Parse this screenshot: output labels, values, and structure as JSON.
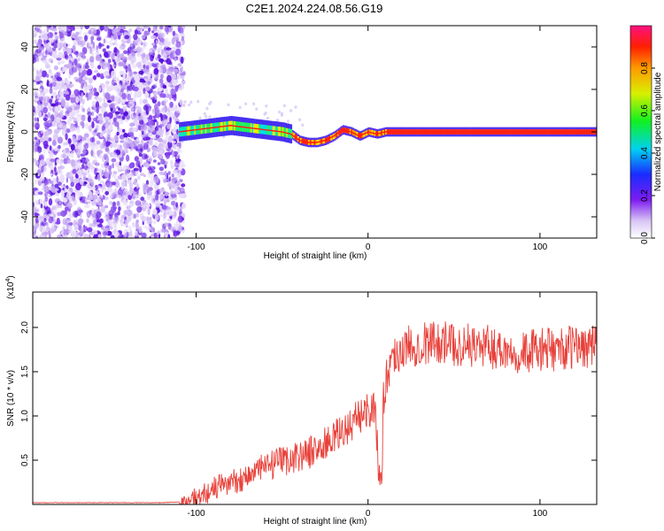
{
  "title": "C2E1.2024.224.08.56.G19",
  "chart_data": [
    {
      "type": "heatmap",
      "xlabel": "Height of straight line (km)",
      "ylabel": "Frequency (Hz)",
      "xlim": [
        -195,
        133
      ],
      "ylim": [
        -50,
        50
      ],
      "x_ticks": [
        "-100",
        "0",
        "100"
      ],
      "y_ticks": [
        "-40",
        "-20",
        "0",
        "20",
        "40"
      ],
      "colorbar": {
        "label": "Normalized spectral amplitude",
        "range": [
          0,
          1
        ],
        "ticks": [
          "0.0",
          "0.2",
          "0.4",
          "0.6",
          "0.8"
        ]
      },
      "noise_region_x": [
        -195,
        -107
      ],
      "signal_track": {
        "x": [
          -110,
          -100,
          -90,
          -80,
          -70,
          -60,
          -50,
          -45,
          -40,
          -35,
          -30,
          -25,
          -20,
          -15,
          -10,
          -5,
          0,
          5,
          10,
          20,
          40,
          60,
          80,
          100,
          120,
          133
        ],
        "y": [
          0,
          1,
          2,
          3,
          2,
          1,
          0,
          -1,
          -4,
          -5,
          -5,
          -4,
          -2,
          1,
          0,
          -2,
          0,
          -1,
          0,
          0,
          0,
          0,
          0,
          0,
          0,
          0
        ]
      }
    },
    {
      "type": "line",
      "xlabel": "Height of straight line (km)",
      "ylabel": "SNR (10 * v/v)",
      "y_multiplier": "(x10",
      "y_exponent": "4",
      "xlim": [
        -195,
        133
      ],
      "ylim": [
        0,
        2.4
      ],
      "x_ticks": [
        "-100",
        "0",
        "100"
      ],
      "y_ticks": [
        "0.5",
        "1.0",
        "1.5",
        "2.0"
      ],
      "color": "#e8413a",
      "series": [
        {
          "x": [
            -195,
            -180,
            -160,
            -140,
            -120,
            -108,
            -100,
            -95,
            -90,
            -85,
            -80,
            -75,
            -70,
            -65,
            -60,
            -55,
            -50,
            -45,
            -40,
            -35,
            -30,
            -25,
            -20,
            -15,
            -10,
            -5,
            0,
            3,
            5,
            7,
            9,
            12,
            15,
            20,
            25,
            30,
            40,
            50,
            60,
            70,
            80,
            90,
            100,
            110,
            120,
            133
          ],
          "y": [
            0.02,
            0.02,
            0.02,
            0.02,
            0.02,
            0.03,
            0.06,
            0.12,
            0.18,
            0.22,
            0.25,
            0.28,
            0.32,
            0.38,
            0.42,
            0.45,
            0.48,
            0.52,
            0.55,
            0.58,
            0.62,
            0.68,
            0.75,
            0.82,
            0.9,
            1.0,
            1.08,
            1.1,
            0.85,
            0.2,
            1.2,
            1.55,
            1.7,
            1.75,
            1.8,
            1.82,
            1.85,
            1.8,
            1.8,
            1.78,
            1.75,
            1.72,
            1.75,
            1.75,
            1.78,
            1.8
          ]
        }
      ]
    }
  ]
}
